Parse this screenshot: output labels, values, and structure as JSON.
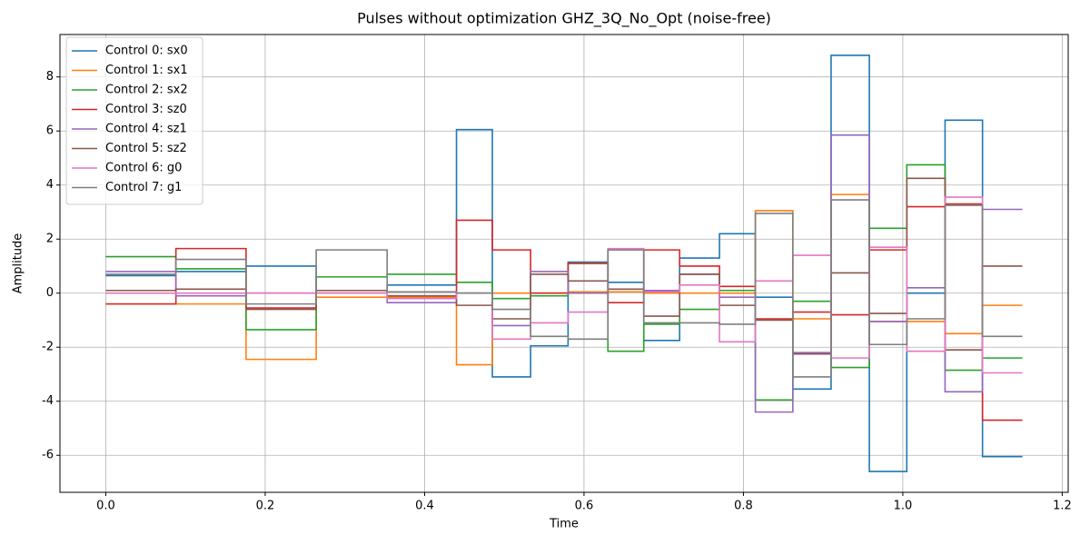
{
  "chart_data": {
    "type": "step",
    "title": "Pulses without optimization GHZ_3Q_No_Opt (noise-free)",
    "xlabel": "Time",
    "ylabel": "Amplitude",
    "x": [
      0,
      0.088,
      0.176,
      0.264,
      0.353,
      0.44,
      0.485,
      0.533,
      0.58,
      0.63,
      0.675,
      0.72,
      0.77,
      0.815,
      0.862,
      0.91,
      0.958,
      1.005,
      1.053,
      1.1,
      1.15
    ],
    "series": [
      {
        "name": "Control 0: sx0",
        "color": "#1f77b4",
        "values": [
          0.65,
          0.8,
          1.0,
          0.0,
          0.3,
          6.05,
          -3.1,
          -1.95,
          1.15,
          0.4,
          -1.75,
          1.3,
          2.2,
          -0.15,
          -3.55,
          8.8,
          -6.6,
          0.0,
          6.4,
          -6.05,
          -6.05
        ]
      },
      {
        "name": "Control 1: sx1",
        "color": "#ff7f0e",
        "values": [
          -0.4,
          -0.4,
          -2.45,
          -0.15,
          -0.15,
          -2.65,
          0.0,
          0.0,
          0.05,
          0.05,
          0.0,
          0.0,
          0.0,
          3.05,
          -0.95,
          3.65,
          -1.05,
          -1.05,
          -1.5,
          -0.45,
          -0.45
        ]
      },
      {
        "name": "Control 2: sx2",
        "color": "#2ca02c",
        "values": [
          1.35,
          0.9,
          -1.35,
          0.6,
          0.7,
          0.4,
          -0.2,
          -0.1,
          1.1,
          -2.15,
          -1.15,
          -0.6,
          0.1,
          -3.95,
          -0.3,
          -2.75,
          2.4,
          4.75,
          -2.85,
          -2.4,
          -2.4
        ]
      },
      {
        "name": "Control 3: sz0",
        "color": "#d62728",
        "values": [
          -0.4,
          1.65,
          -0.55,
          0.1,
          0.05,
          2.7,
          1.6,
          0.0,
          1.1,
          -0.35,
          1.6,
          1.0,
          0.25,
          -0.95,
          -0.7,
          -0.8,
          1.6,
          3.2,
          3.3,
          -4.7,
          -4.7
        ]
      },
      {
        "name": "Control 4: sz1",
        "color": "#9467bd",
        "values": [
          0.8,
          -0.1,
          0.0,
          0.0,
          -0.35,
          0.0,
          -1.2,
          0.8,
          0.0,
          1.6,
          0.1,
          0.7,
          -0.15,
          -4.4,
          -2.2,
          5.85,
          -1.05,
          0.2,
          -3.65,
          3.1,
          3.1
        ]
      },
      {
        "name": "Control 5: sz2",
        "color": "#8c564b",
        "values": [
          0.1,
          0.15,
          -0.6,
          0.1,
          -0.1,
          -0.45,
          -0.95,
          0.7,
          0.45,
          0.15,
          -0.85,
          0.7,
          -0.45,
          -1.0,
          -2.25,
          0.75,
          -0.75,
          4.25,
          -2.1,
          1.0,
          1.0
        ]
      },
      {
        "name": "Control 6: g0",
        "color": "#e377c2",
        "values": [
          0.0,
          0.0,
          0.0,
          0.0,
          -0.2,
          0.0,
          -1.7,
          -1.1,
          -0.7,
          1.65,
          0.05,
          0.3,
          -1.8,
          0.45,
          1.4,
          -2.4,
          1.7,
          -2.15,
          3.55,
          -2.95,
          -2.95
        ]
      },
      {
        "name": "Control 7: g1",
        "color": "#7f7f7f",
        "values": [
          0.7,
          1.25,
          -0.4,
          1.6,
          0.05,
          0.0,
          -0.6,
          -1.6,
          -1.7,
          1.6,
          -1.1,
          -1.1,
          -1.15,
          2.95,
          -3.1,
          3.45,
          -1.9,
          -0.95,
          3.25,
          -1.6,
          -1.6
        ]
      }
    ],
    "xlim": [
      -0.0575,
      1.2075
    ],
    "xticks": [
      {
        "value": 0,
        "label": "0.0"
      },
      {
        "value": 0.2,
        "label": "0.2"
      },
      {
        "value": 0.4,
        "label": "0.4"
      },
      {
        "value": 0.6,
        "label": "0.6"
      },
      {
        "value": 0.8,
        "label": "0.8"
      },
      {
        "value": 1.0,
        "label": "1.0"
      },
      {
        "value": 1.2,
        "label": "1.2"
      }
    ],
    "ylim": [
      -7.37,
      9.57
    ],
    "yticks": [
      -6,
      -4,
      -2,
      0,
      2,
      4,
      6,
      8
    ],
    "grid": true,
    "legend": "upper-left"
  }
}
